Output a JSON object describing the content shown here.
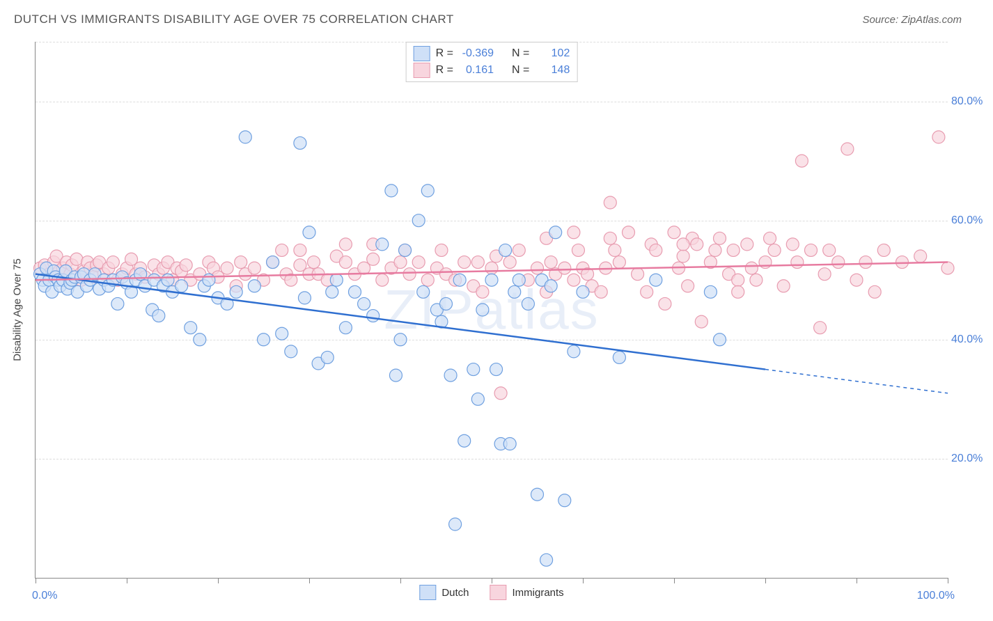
{
  "title": "DUTCH VS IMMIGRANTS DISABILITY AGE OVER 75 CORRELATION CHART",
  "source": "Source: ZipAtlas.com",
  "watermark": "ZIPatlas",
  "y_axis_label": "Disability Age Over 75",
  "chart": {
    "type": "scatter",
    "xlim": [
      0,
      100
    ],
    "ylim": [
      0,
      90
    ],
    "x_min_label": "0.0%",
    "x_max_label": "100.0%",
    "y_ticks": [
      20,
      40,
      60,
      80
    ],
    "y_tick_labels": [
      "20.0%",
      "40.0%",
      "60.0%",
      "80.0%"
    ],
    "x_tick_positions": [
      0,
      10,
      20,
      30,
      40,
      50,
      60,
      70,
      80,
      90,
      100
    ],
    "grid_color": "#dddddd",
    "background_color": "#ffffff",
    "marker_radius": 9,
    "marker_stroke_width": 1.2,
    "line_width": 2.5,
    "series": [
      {
        "name": "Dutch",
        "fill": "#cfe0f7",
        "stroke": "#6fa0e0",
        "line_color": "#2f6fd0",
        "R": "-0.369",
        "N": "102",
        "trend": {
          "x1": 0,
          "y1": 51,
          "x2": 80,
          "y2": 35,
          "x2_ext": 100,
          "y2_ext": 31
        },
        "points": [
          [
            0.5,
            51
          ],
          [
            0.8,
            50
          ],
          [
            1,
            49
          ],
          [
            1.2,
            52
          ],
          [
            1.5,
            50
          ],
          [
            1.8,
            48
          ],
          [
            2,
            51.5
          ],
          [
            2.2,
            50.5
          ],
          [
            2.5,
            50
          ],
          [
            2.7,
            49
          ],
          [
            3,
            50
          ],
          [
            3.3,
            51.5
          ],
          [
            3.5,
            48.5
          ],
          [
            3.8,
            49.5
          ],
          [
            4,
            50
          ],
          [
            4.3,
            50.5
          ],
          [
            4.6,
            48
          ],
          [
            5,
            50.5
          ],
          [
            5.3,
            51
          ],
          [
            5.6,
            49
          ],
          [
            6,
            50
          ],
          [
            6.5,
            51
          ],
          [
            7,
            48.5
          ],
          [
            7.5,
            50
          ],
          [
            8,
            49
          ],
          [
            8.5,
            50
          ],
          [
            9,
            46
          ],
          [
            9.5,
            50.5
          ],
          [
            10,
            49.5
          ],
          [
            10.5,
            48
          ],
          [
            11,
            50
          ],
          [
            11.5,
            51
          ],
          [
            12,
            49
          ],
          [
            12.8,
            45
          ],
          [
            13,
            50
          ],
          [
            13.5,
            44
          ],
          [
            14,
            49
          ],
          [
            14.5,
            50
          ],
          [
            15,
            48
          ],
          [
            16,
            49
          ],
          [
            17,
            42
          ],
          [
            18,
            40
          ],
          [
            18.5,
            49
          ],
          [
            19,
            50
          ],
          [
            20,
            47
          ],
          [
            21,
            46
          ],
          [
            22,
            48
          ],
          [
            23,
            74
          ],
          [
            24,
            49
          ],
          [
            25,
            40
          ],
          [
            26,
            53
          ],
          [
            27,
            41
          ],
          [
            28,
            38
          ],
          [
            29,
            73
          ],
          [
            29.5,
            47
          ],
          [
            30,
            58
          ],
          [
            31,
            36
          ],
          [
            32,
            37
          ],
          [
            32.5,
            48
          ],
          [
            33,
            50
          ],
          [
            34,
            42
          ],
          [
            35,
            48
          ],
          [
            36,
            46
          ],
          [
            37,
            44
          ],
          [
            38,
            56
          ],
          [
            39,
            65
          ],
          [
            39.5,
            34
          ],
          [
            40,
            40
          ],
          [
            40.5,
            55
          ],
          [
            42,
            60
          ],
          [
            42.5,
            48
          ],
          [
            43,
            65
          ],
          [
            44,
            45
          ],
          [
            44.5,
            43
          ],
          [
            45,
            46
          ],
          [
            45.5,
            34
          ],
          [
            46,
            9
          ],
          [
            46.5,
            50
          ],
          [
            47,
            23
          ],
          [
            48,
            35
          ],
          [
            48.5,
            30
          ],
          [
            49,
            45
          ],
          [
            50,
            50
          ],
          [
            50.5,
            35
          ],
          [
            51,
            22.5
          ],
          [
            51.5,
            55
          ],
          [
            52,
            22.5
          ],
          [
            52.5,
            48
          ],
          [
            53,
            50
          ],
          [
            54,
            46
          ],
          [
            55,
            14
          ],
          [
            55.5,
            50
          ],
          [
            56,
            3
          ],
          [
            56.5,
            49
          ],
          [
            57,
            58
          ],
          [
            58,
            13
          ],
          [
            59,
            38
          ],
          [
            60,
            48
          ],
          [
            64,
            37
          ],
          [
            68,
            50
          ],
          [
            74,
            48
          ],
          [
            75,
            40
          ]
        ]
      },
      {
        "name": "Immigrants",
        "fill": "#f8d5de",
        "stroke": "#e89cb0",
        "line_color": "#e77ba0",
        "R": "0.161",
        "N": "148",
        "trend": {
          "x1": 0,
          "y1": 50,
          "x2": 100,
          "y2": 53
        },
        "points": [
          [
            0.5,
            52
          ],
          [
            1,
            52.5
          ],
          [
            1.5,
            51
          ],
          [
            2,
            53
          ],
          [
            2.3,
            54
          ],
          [
            2.6,
            51.5
          ],
          [
            3,
            52
          ],
          [
            3.4,
            53
          ],
          [
            3.8,
            51
          ],
          [
            4,
            52.5
          ],
          [
            4.5,
            53.5
          ],
          [
            5,
            50
          ],
          [
            5.3,
            51.5
          ],
          [
            5.7,
            53
          ],
          [
            6,
            52
          ],
          [
            6.3,
            50.5
          ],
          [
            6.7,
            52.5
          ],
          [
            7,
            53
          ],
          [
            7.5,
            51
          ],
          [
            8,
            52
          ],
          [
            8.5,
            53
          ],
          [
            9,
            50
          ],
          [
            9.5,
            51
          ],
          [
            10,
            52
          ],
          [
            10.5,
            53.5
          ],
          [
            11,
            51
          ],
          [
            11.5,
            52
          ],
          [
            12,
            50.5
          ],
          [
            13,
            52.5
          ],
          [
            13.5,
            51
          ],
          [
            14,
            52
          ],
          [
            14.5,
            53
          ],
          [
            15,
            50
          ],
          [
            15.5,
            52
          ],
          [
            16,
            51.5
          ],
          [
            16.5,
            52.5
          ],
          [
            17,
            50
          ],
          [
            18,
            51
          ],
          [
            19,
            53
          ],
          [
            19.5,
            52
          ],
          [
            20,
            50.5
          ],
          [
            21,
            52
          ],
          [
            22,
            49
          ],
          [
            22.5,
            53
          ],
          [
            23,
            51
          ],
          [
            24,
            52
          ],
          [
            25,
            50
          ],
          [
            26,
            53
          ],
          [
            27,
            55
          ],
          [
            27.5,
            51
          ],
          [
            28,
            50
          ],
          [
            29,
            52.5
          ],
          [
            30,
            51
          ],
          [
            30.5,
            53
          ],
          [
            31,
            51
          ],
          [
            32,
            50
          ],
          [
            33,
            54
          ],
          [
            34,
            53
          ],
          [
            35,
            51
          ],
          [
            36,
            52
          ],
          [
            37,
            53.5
          ],
          [
            38,
            50
          ],
          [
            39,
            52
          ],
          [
            40,
            53
          ],
          [
            40.5,
            55
          ],
          [
            41,
            51
          ],
          [
            42,
            53
          ],
          [
            43,
            50
          ],
          [
            44,
            52
          ],
          [
            44.5,
            55
          ],
          [
            45,
            51
          ],
          [
            46,
            50
          ],
          [
            47,
            53
          ],
          [
            48,
            49
          ],
          [
            48.5,
            53
          ],
          [
            49,
            48
          ],
          [
            50,
            52
          ],
          [
            50.5,
            54
          ],
          [
            51,
            31
          ],
          [
            52,
            53
          ],
          [
            53,
            55
          ],
          [
            54,
            50
          ],
          [
            55,
            52
          ],
          [
            56,
            48
          ],
          [
            56.5,
            53
          ],
          [
            57,
            51
          ],
          [
            58,
            52
          ],
          [
            59,
            50
          ],
          [
            59.5,
            55
          ],
          [
            60,
            52
          ],
          [
            60.5,
            51
          ],
          [
            61,
            49
          ],
          [
            62,
            48
          ],
          [
            62.5,
            52
          ],
          [
            63,
            57
          ],
          [
            63.5,
            55
          ],
          [
            64,
            53
          ],
          [
            65,
            58
          ],
          [
            66,
            51
          ],
          [
            67,
            48
          ],
          [
            67.5,
            56
          ],
          [
            68,
            55
          ],
          [
            69,
            46
          ],
          [
            70,
            58
          ],
          [
            70.5,
            52
          ],
          [
            71,
            54
          ],
          [
            71.5,
            49
          ],
          [
            72,
            57
          ],
          [
            72.5,
            56
          ],
          [
            73,
            43
          ],
          [
            74,
            53
          ],
          [
            74.5,
            55
          ],
          [
            75,
            57
          ],
          [
            76,
            51
          ],
          [
            76.5,
            55
          ],
          [
            77,
            50
          ],
          [
            78,
            56
          ],
          [
            78.5,
            52
          ],
          [
            79,
            50
          ],
          [
            80,
            53
          ],
          [
            80.5,
            57
          ],
          [
            81,
            55
          ],
          [
            82,
            49
          ],
          [
            83,
            56
          ],
          [
            83.5,
            53
          ],
          [
            84,
            70
          ],
          [
            85,
            55
          ],
          [
            86,
            42
          ],
          [
            86.5,
            51
          ],
          [
            87,
            55
          ],
          [
            88,
            53
          ],
          [
            89,
            72
          ],
          [
            90,
            50
          ],
          [
            91,
            53
          ],
          [
            92,
            48
          ],
          [
            93,
            55
          ],
          [
            95,
            53
          ],
          [
            97,
            54
          ],
          [
            99,
            74
          ],
          [
            100,
            52
          ],
          [
            63,
            63
          ],
          [
            56,
            57
          ],
          [
            59,
            58
          ],
          [
            71,
            56
          ],
          [
            77,
            48
          ],
          [
            34,
            56
          ],
          [
            37,
            56
          ],
          [
            29,
            55
          ]
        ]
      }
    ]
  },
  "legend": {
    "series1_label": "Dutch",
    "series2_label": "Immigrants",
    "R_label": "R =",
    "N_label": "N ="
  }
}
